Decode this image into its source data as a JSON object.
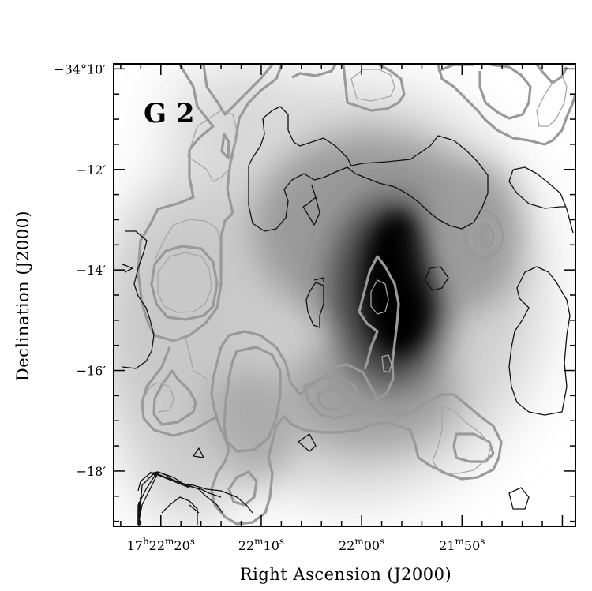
{
  "chart_data": {
    "type": "heatmap",
    "panel_label": "G 2",
    "xlabel": "Right Ascension (J2000)",
    "ylabel": "Declination (J2000)",
    "x_ticks": [
      {
        "label": "17h22m20s",
        "ra_sec": 20
      },
      {
        "label": "22m10s",
        "ra_sec": 10
      },
      {
        "label": "22m00s",
        "ra_sec": 0
      },
      {
        "label": "21m50s",
        "ra_sec": -10
      }
    ],
    "y_ticks": [
      {
        "label": "-34°10′",
        "dec_arcmin": -10
      },
      {
        "label": "-12′",
        "dec_arcmin": -12
      },
      {
        "label": "-14′",
        "dec_arcmin": -14
      },
      {
        "label": "-16′",
        "dec_arcmin": -16
      },
      {
        "label": "-18′",
        "dec_arcmin": -18
      }
    ],
    "xlim_sec": [
      24.7,
      -21.3
    ],
    "ylim_arcmin": [
      -19.1,
      -9.9
    ],
    "colormap": "grayscale, white = low, black = high",
    "emission_peak": {
      "ra_sec": -1.5,
      "dec_arcmin": -14.5
    },
    "contour_colors": {
      "thin_dark": "#111111",
      "thick_gray": "#999999",
      "thin_gray": "#a6a6a6"
    }
  }
}
